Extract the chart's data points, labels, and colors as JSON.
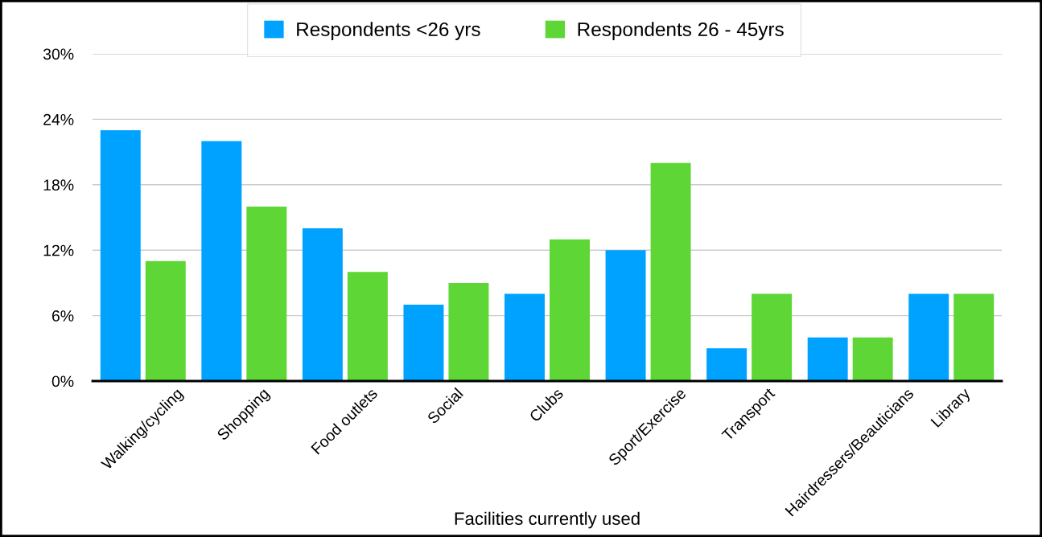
{
  "chart_data": {
    "type": "bar",
    "xlabel": "Facilities currently used",
    "categories": [
      "Walking/cycling",
      "Shopping",
      "Food outlets",
      "Social",
      "Clubs",
      "Sport/Exercise",
      "Transport",
      "Hairdressers/Beauticians",
      "Library"
    ],
    "series": [
      {
        "name": "Respondents <26 yrs",
        "color": "#00a2ff",
        "values": [
          23,
          22,
          14,
          7,
          8,
          12,
          3,
          4,
          8
        ]
      },
      {
        "name": "Respondents 26 - 45yrs",
        "color": "#5dd636",
        "values": [
          11,
          16,
          10,
          9,
          13,
          20,
          8,
          4,
          8
        ]
      }
    ],
    "ylim": [
      0,
      30
    ],
    "yticks": [
      {
        "value": 0,
        "label": "0%"
      },
      {
        "value": 6,
        "label": "6%"
      },
      {
        "value": 12,
        "label": "12%"
      },
      {
        "value": 18,
        "label": "18%"
      },
      {
        "value": 24,
        "label": "24%"
      },
      {
        "value": 30,
        "label": "30%"
      }
    ],
    "grid": "y",
    "legend": "top"
  }
}
